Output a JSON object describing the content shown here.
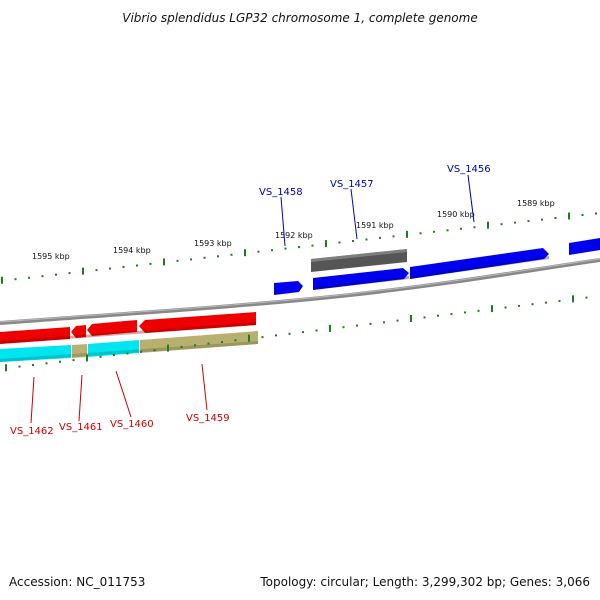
{
  "title": "Vibrio splendidus LGP32 chromosome 1, complete genome",
  "footer": {
    "accession": "Accession: NC_011753",
    "summary": "Topology: circular; Length: 3,299,302 bp; Genes: 3,066"
  },
  "kbp_ticks": [
    "1595 kbp",
    "1594 kbp",
    "1593 kbp",
    "1592 kbp",
    "1591 kbp",
    "1590 kbp",
    "1589 kbp"
  ],
  "genes_top": [
    {
      "label": "VS_1458"
    },
    {
      "label": "VS_1457"
    },
    {
      "label": "VS_1456"
    }
  ],
  "genes_bottom": [
    {
      "label": "VS_1462"
    },
    {
      "label": "VS_1461"
    },
    {
      "label": "VS_1460"
    },
    {
      "label": "VS_1459"
    }
  ],
  "colors": {
    "forward_gene": "#0000ee",
    "reverse_gene": "#ee0000",
    "pseudo_gene": "#555555",
    "cds_cyan": "#00e5ee",
    "cds_khaki": "#b8b070",
    "tick": "#1a7f1a",
    "label_forward": "#0000aa",
    "label_reverse": "#cc0000",
    "backbone": "#888888"
  }
}
